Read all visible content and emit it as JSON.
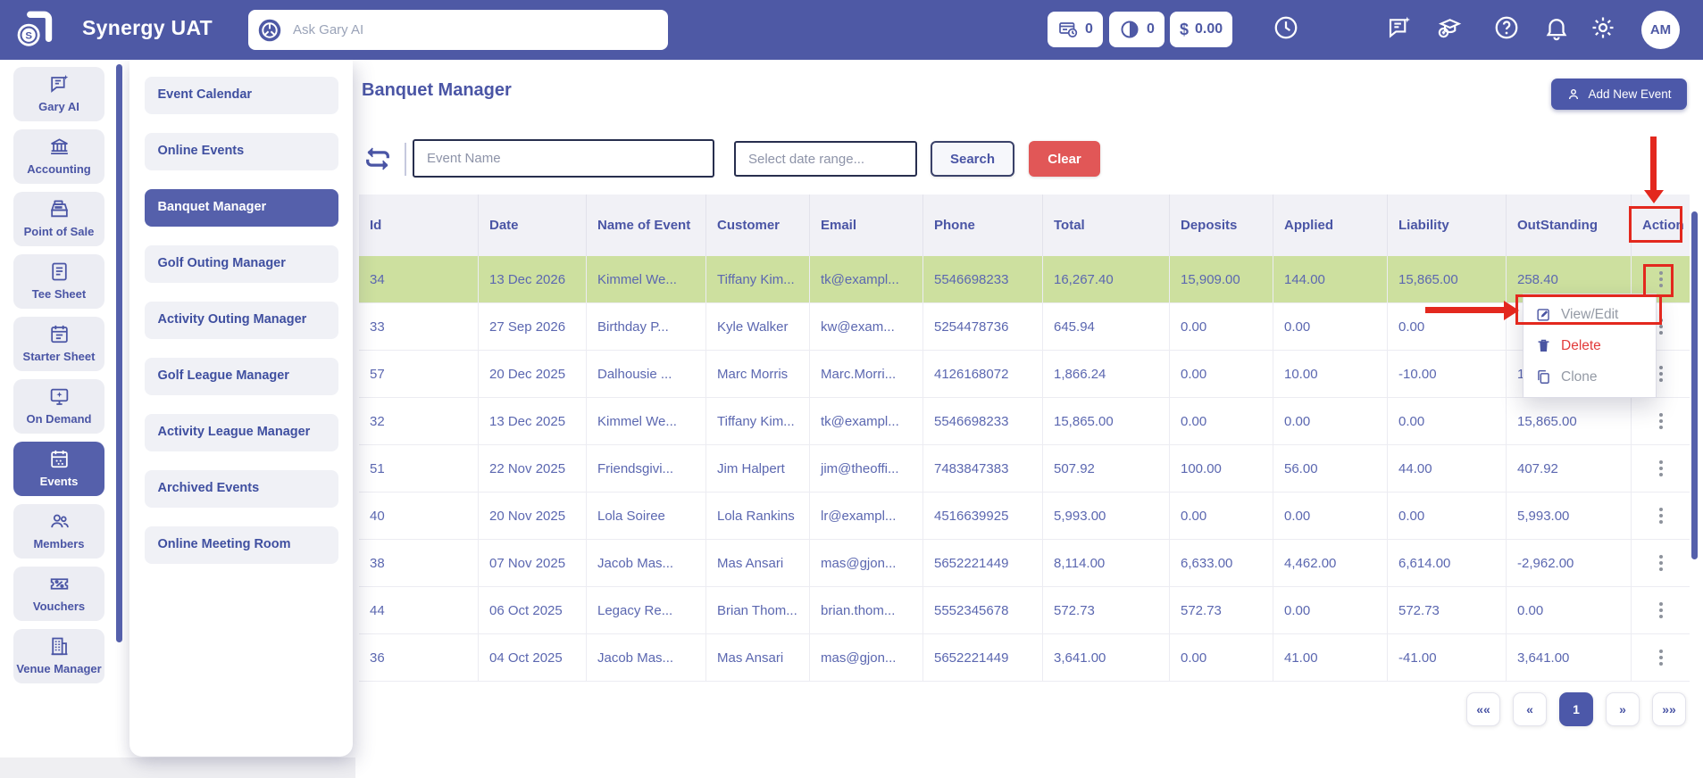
{
  "colors": {
    "header_bg": "#4e59a5",
    "active_purple": "#5560ab",
    "link_text": "#4a55a5",
    "row_highlight_green": "#cde09f",
    "annotation_red": "#e3281e",
    "clear_button_red": "#e15757",
    "delete_text_red": "#e23b3b"
  },
  "header": {
    "app_title": "Synergy UAT",
    "gary_placeholder": "Ask Gary AI",
    "badges": [
      {
        "icon": "pos-terminal-clock-icon",
        "value": "0"
      },
      {
        "icon": "half-pie-icon",
        "value": "0"
      },
      {
        "icon": "dollar-icon",
        "symbol": "$",
        "value": "0.00"
      }
    ],
    "avatar_initials": "AM"
  },
  "sidebar": {
    "items": [
      {
        "label": "Gary AI",
        "icon": "chat-sparkle",
        "active": false
      },
      {
        "label": "Accounting",
        "icon": "bank",
        "active": false
      },
      {
        "label": "Point of Sale",
        "icon": "register",
        "active": false
      },
      {
        "label": "Tee Sheet",
        "icon": "document",
        "active": false
      },
      {
        "label": "Starter Sheet",
        "icon": "calendar-lines",
        "active": false
      },
      {
        "label": "On Demand",
        "icon": "monitor-sparkle",
        "active": false
      },
      {
        "label": "Events",
        "icon": "calendar-dots",
        "active": true
      },
      {
        "label": "Members",
        "icon": "people",
        "active": false
      },
      {
        "label": "Vouchers",
        "icon": "ticket",
        "active": false
      },
      {
        "label": "Venue Manager",
        "icon": "building",
        "active": false
      }
    ]
  },
  "submenu": {
    "items": [
      {
        "label": "Event Calendar",
        "active": false
      },
      {
        "label": "Online Events",
        "active": false
      },
      {
        "label": "Banquet Manager",
        "active": true
      },
      {
        "label": "Golf Outing Manager",
        "active": false
      },
      {
        "label": "Activity Outing Manager",
        "active": false
      },
      {
        "label": "Golf League Manager",
        "active": false
      },
      {
        "label": "Activity League Manager",
        "active": false
      },
      {
        "label": "Archived Events",
        "active": false
      },
      {
        "label": "Online Meeting Room",
        "active": false
      }
    ]
  },
  "main": {
    "page_title": "Banquet Manager",
    "add_button_label": "Add New Event",
    "filters": {
      "event_name_placeholder": "Event Name",
      "date_placeholder": "Select date range...",
      "search_label": "Search",
      "clear_label": "Clear"
    },
    "table": {
      "columns": [
        "Id",
        "Date",
        "Name of Event",
        "Customer",
        "Email",
        "Phone",
        "Total",
        "Deposits",
        "Applied",
        "Liability",
        "OutStanding",
        "Action"
      ],
      "rows": [
        {
          "highlighted": true,
          "cells": [
            "34",
            "13 Dec 2026",
            "Kimmel We...",
            "Tiffany Kim...",
            "tk@exampl...",
            "5546698233",
            "16,267.40",
            "15,909.00",
            "144.00",
            "15,865.00",
            "258.40"
          ]
        },
        {
          "highlighted": false,
          "cells": [
            "33",
            "27 Sep 2026",
            "Birthday P...",
            "Kyle Walker",
            "kw@exam...",
            "5254478736",
            "645.94",
            "0.00",
            "0.00",
            "0.00",
            ""
          ]
        },
        {
          "highlighted": false,
          "cells": [
            "57",
            "20 Dec 2025",
            "Dalhousie ...",
            "Marc Morris",
            "Marc.Morri...",
            "4126168072",
            "1,866.24",
            "0.00",
            "10.00",
            "-10.00",
            "1"
          ]
        },
        {
          "highlighted": false,
          "cells": [
            "32",
            "13 Dec 2025",
            "Kimmel We...",
            "Tiffany Kim...",
            "tk@exampl...",
            "5546698233",
            "15,865.00",
            "0.00",
            "0.00",
            "0.00",
            "15,865.00"
          ]
        },
        {
          "highlighted": false,
          "cells": [
            "51",
            "22 Nov 2025",
            "Friendsgivi...",
            "Jim Halpert",
            "jim@theoffi...",
            "7483847383",
            "507.92",
            "100.00",
            "56.00",
            "44.00",
            "407.92"
          ]
        },
        {
          "highlighted": false,
          "cells": [
            "40",
            "20 Nov 2025",
            "Lola Soiree",
            "Lola Rankins",
            "lr@exampl...",
            "4516639925",
            "5,993.00",
            "0.00",
            "0.00",
            "0.00",
            "5,993.00"
          ]
        },
        {
          "highlighted": false,
          "cells": [
            "38",
            "07 Nov 2025",
            "Jacob Mas...",
            "Mas Ansari",
            "mas@gjon...",
            "5652221449",
            "8,114.00",
            "6,633.00",
            "4,462.00",
            "6,614.00",
            "-2,962.00"
          ]
        },
        {
          "highlighted": false,
          "cells": [
            "44",
            "06 Oct 2025",
            "Legacy Re...",
            "Brian Thom...",
            "brian.thom...",
            "5552345678",
            "572.73",
            "572.73",
            "0.00",
            "572.73",
            "0.00"
          ]
        },
        {
          "highlighted": false,
          "cells": [
            "36",
            "04 Oct 2025",
            "Jacob Mas...",
            "Mas Ansari",
            "mas@gjon...",
            "5652221449",
            "3,641.00",
            "0.00",
            "41.00",
            "-41.00",
            "3,641.00"
          ]
        }
      ]
    },
    "row_menu": {
      "items": [
        {
          "label": "View/Edit",
          "icon": "pencil-square",
          "style": "muted"
        },
        {
          "label": "Delete",
          "icon": "trash",
          "style": "danger"
        },
        {
          "label": "Clone",
          "icon": "copy",
          "style": "muted"
        }
      ]
    },
    "pagination": {
      "buttons": [
        {
          "label": "««",
          "active": false
        },
        {
          "label": "«",
          "active": false
        },
        {
          "label": "1",
          "active": true
        },
        {
          "label": "»",
          "active": false
        },
        {
          "label": "»»",
          "active": false
        }
      ]
    }
  }
}
